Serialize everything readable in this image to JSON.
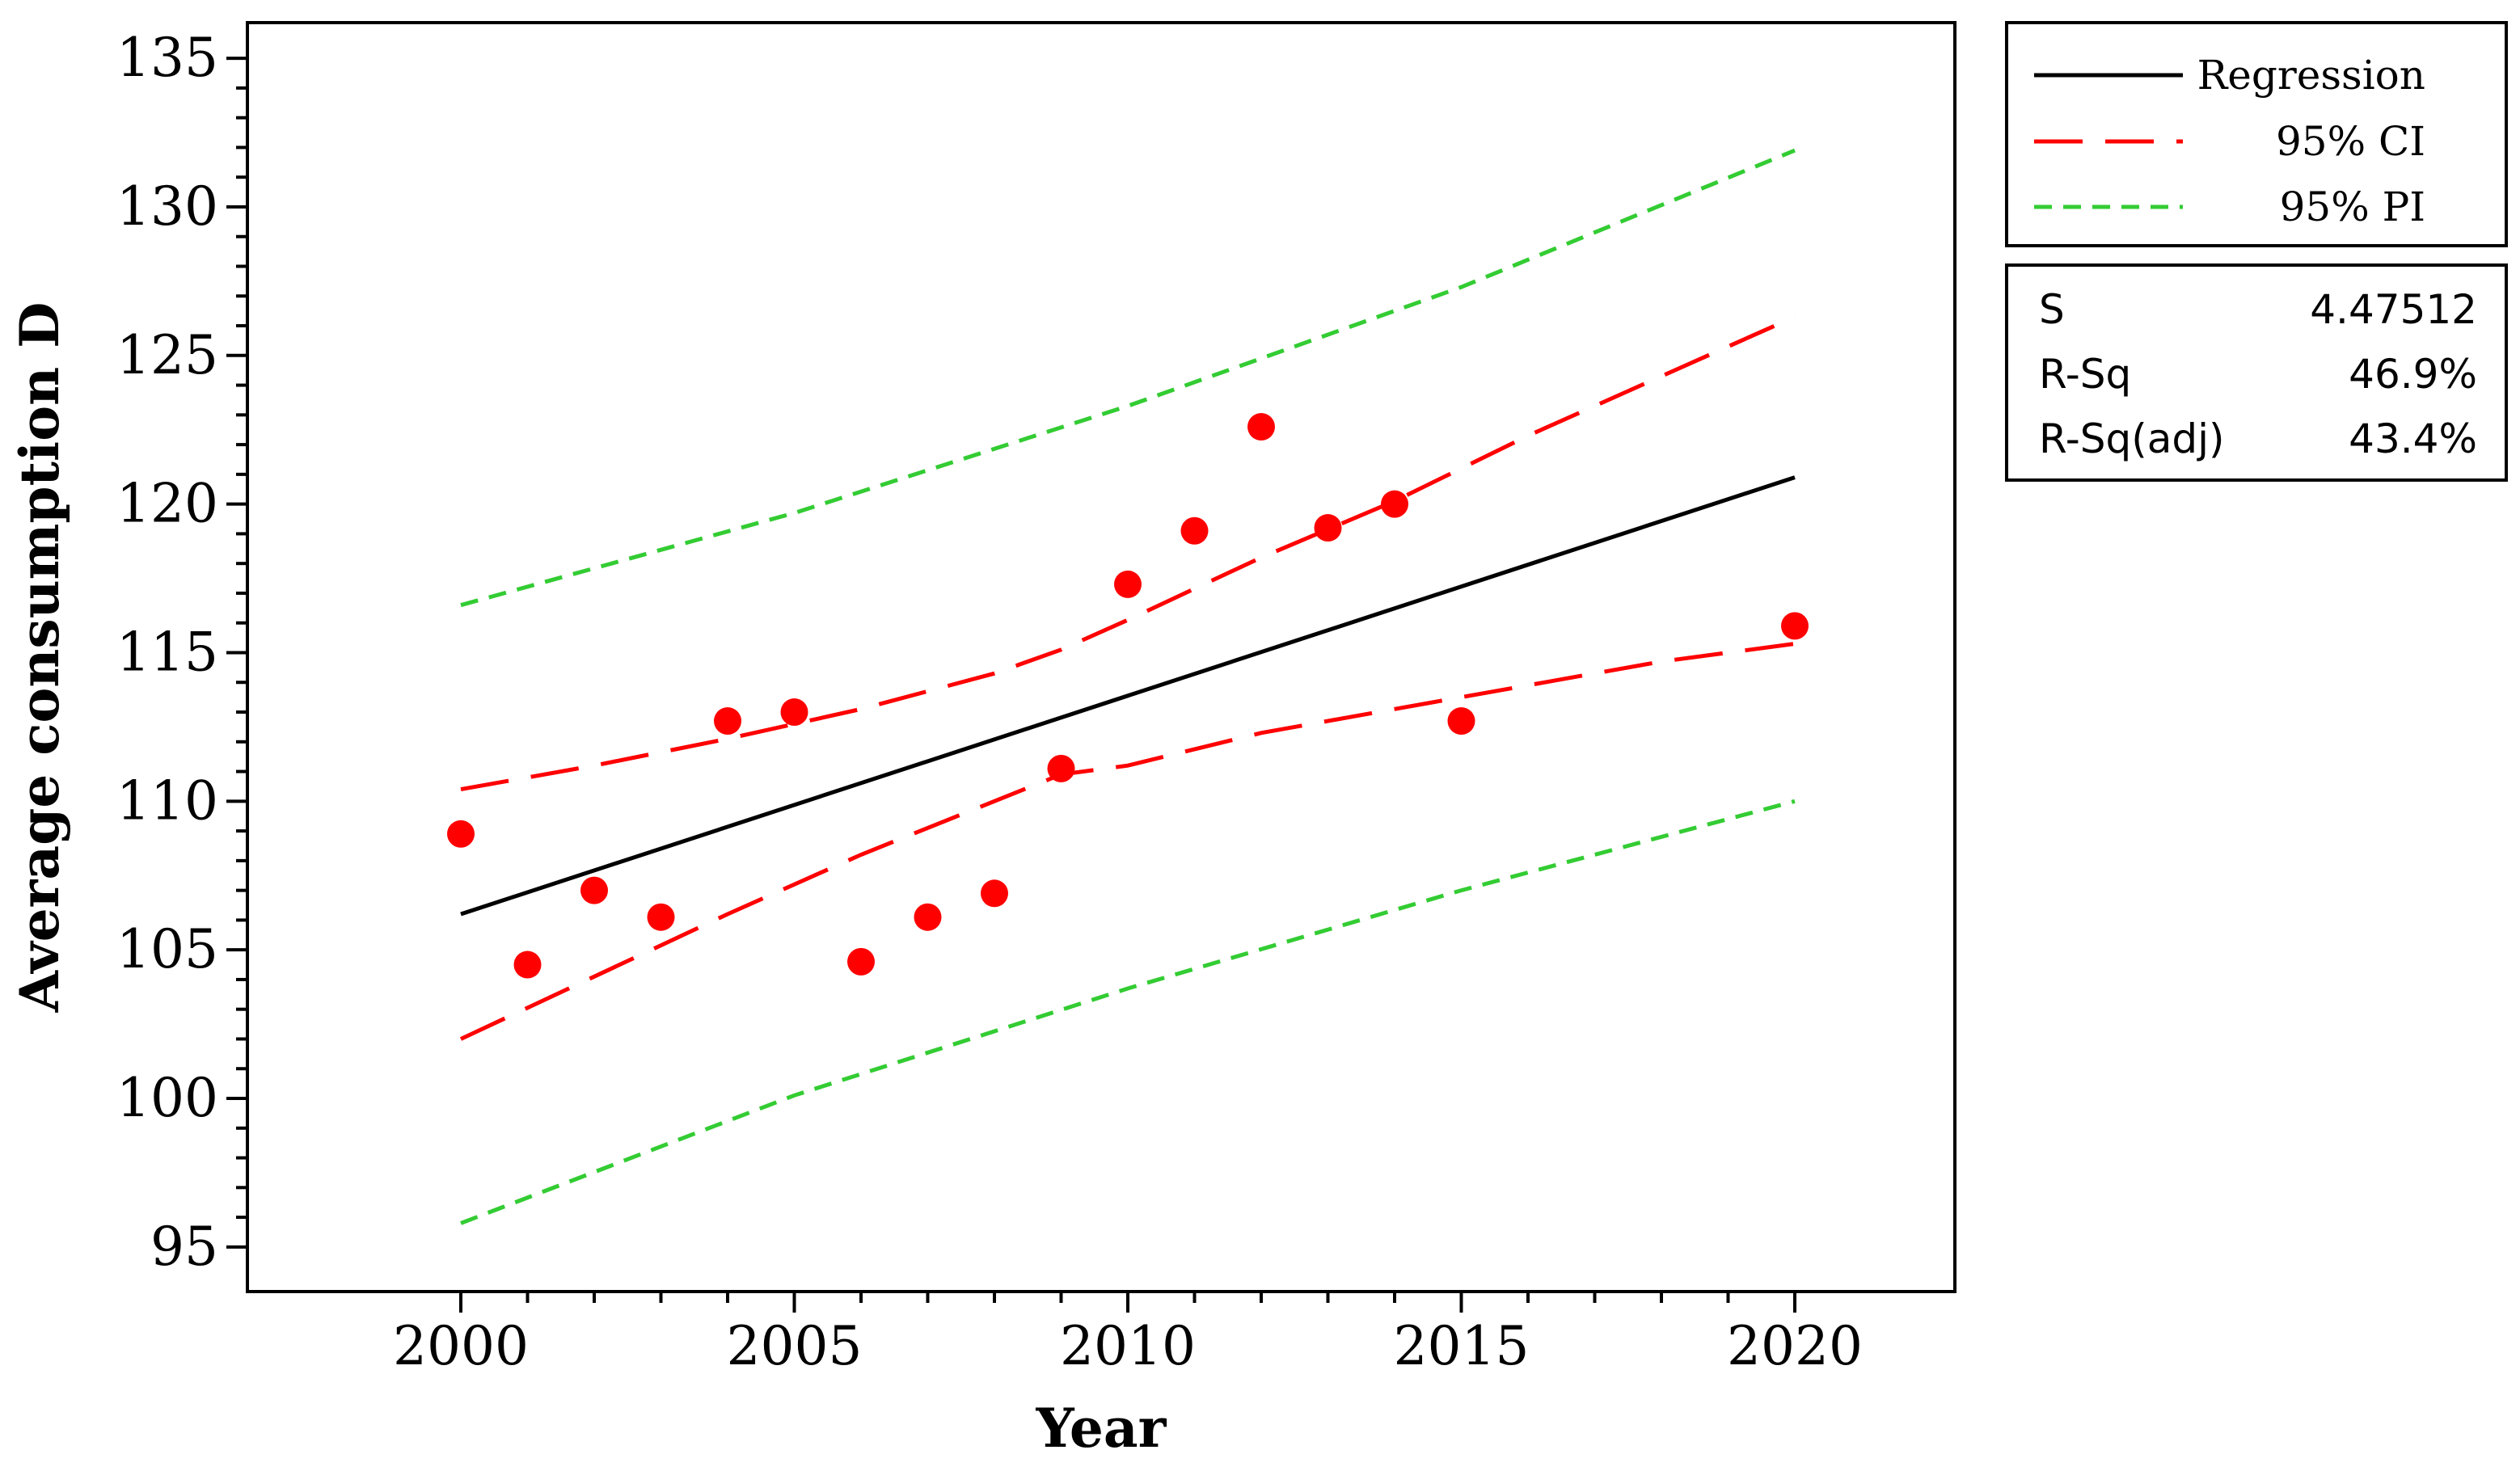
{
  "chart_data": {
    "type": "scatter",
    "xlabel": "Year",
    "ylabel": "Average consumption D",
    "xlim": [
      1996.8,
      2022.4
    ],
    "ylim": [
      93.5,
      136.2
    ],
    "x_ticks": [
      2000,
      2005,
      2010,
      2015,
      2020
    ],
    "y_ticks": [
      95,
      100,
      105,
      110,
      115,
      120,
      125,
      130,
      135
    ],
    "grid": false,
    "legend_position": "right, outside plot",
    "colors": {
      "points": "#ff0000",
      "regression": "#000000",
      "ci": "#ff0000",
      "pi": "#33cc33"
    },
    "points": {
      "x": [
        2000,
        2001,
        2002,
        2003,
        2004,
        2005,
        2006,
        2007,
        2008,
        2009,
        2010,
        2011,
        2012,
        2013,
        2014,
        2015,
        2020
      ],
      "y": [
        108.9,
        104.5,
        107.0,
        106.1,
        112.7,
        113.0,
        104.6,
        106.1,
        106.9,
        111.1,
        117.3,
        119.1,
        122.6,
        119.2,
        120.0,
        112.7,
        115.9
      ]
    },
    "series": [
      {
        "name": "Regression",
        "style": "solid",
        "x": [
          2000,
          2020
        ],
        "y": [
          106.2,
          120.9
        ]
      },
      {
        "name": "95% CI",
        "style": "long-dash",
        "x": [
          2000,
          2002,
          2004,
          2006,
          2008,
          2009,
          2010,
          2012,
          2014,
          2016,
          2018,
          2020
        ],
        "upper": [
          110.4,
          111.2,
          112.1,
          113.1,
          114.3,
          115.1,
          116.1,
          118.2,
          120.1,
          122.3,
          124.3,
          126.3
        ],
        "lower": [
          102.0,
          104.1,
          106.2,
          108.2,
          110.0,
          110.9,
          111.2,
          112.3,
          113.1,
          113.9,
          114.7,
          115.3
        ]
      },
      {
        "name": "95% PI",
        "style": "short-dash",
        "x": [
          2000,
          2005,
          2010,
          2015,
          2020
        ],
        "upper": [
          116.6,
          119.7,
          123.3,
          127.3,
          131.9
        ],
        "lower": [
          95.8,
          100.1,
          103.7,
          107.0,
          110.0
        ]
      }
    ],
    "stats": [
      {
        "label": "S",
        "value": "4.47512"
      },
      {
        "label": "R-Sq",
        "value": "46.9%"
      },
      {
        "label": "R-Sq(adj)",
        "value": "43.4%"
      }
    ]
  }
}
